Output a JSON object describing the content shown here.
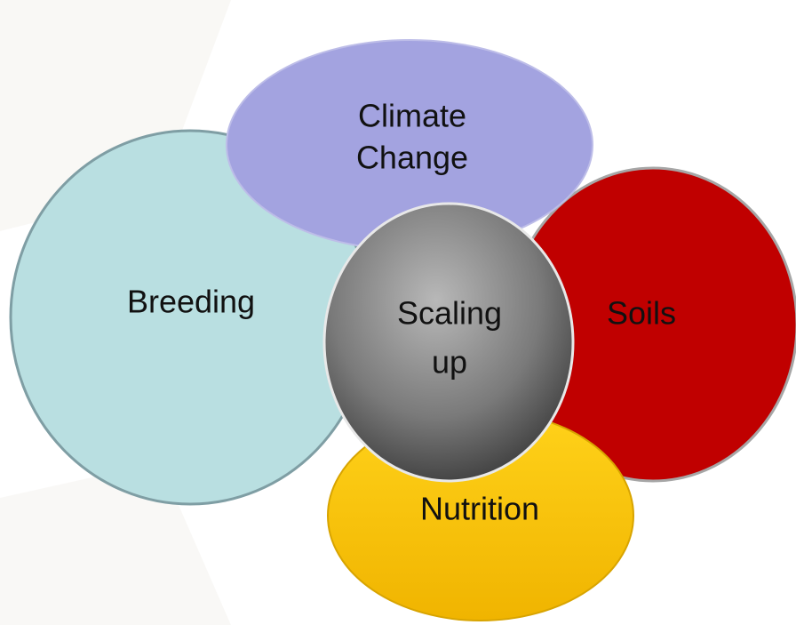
{
  "nodes": [
    {
      "id": "breeding",
      "lines": [
        "Breeding"
      ]
    },
    {
      "id": "soils",
      "lines": [
        "Soils"
      ]
    },
    {
      "id": "climate",
      "lines": [
        "Climate",
        "Change"
      ]
    },
    {
      "id": "nutrition",
      "lines": [
        "Nutrition"
      ]
    },
    {
      "id": "scaling",
      "lines": [
        "Scaling",
        "up"
      ]
    }
  ]
}
